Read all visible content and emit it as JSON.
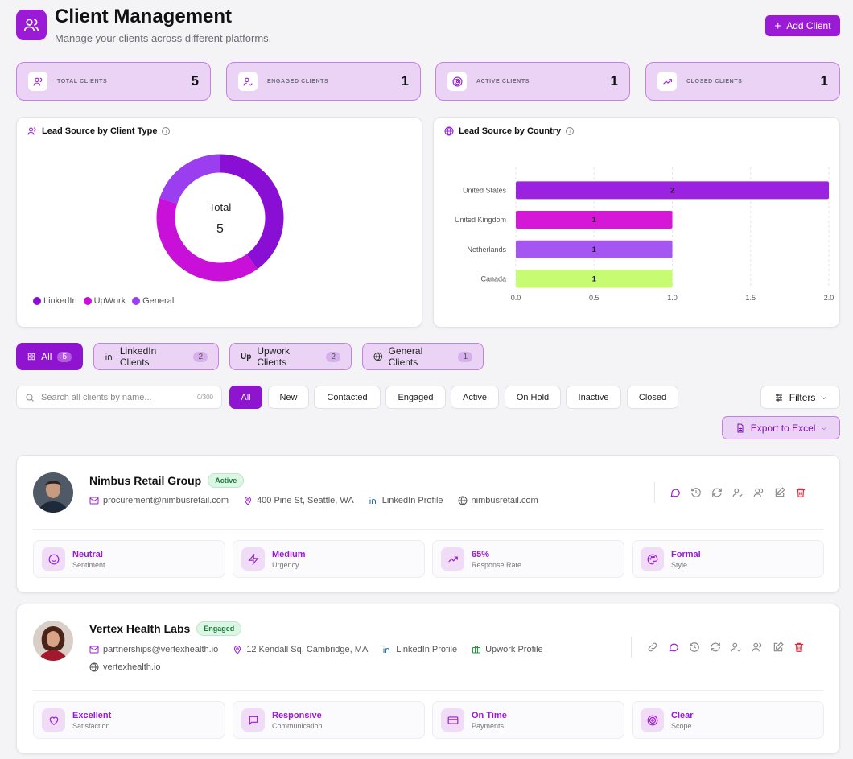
{
  "header": {
    "title": "Client Management",
    "subtitle": "Manage your clients across different platforms.",
    "add_button": "Add Client"
  },
  "stats": [
    {
      "label": "TOTAL CLIENTS",
      "value": "5",
      "icon": "users-icon"
    },
    {
      "label": "ENGAGED CLIENTS",
      "value": "1",
      "icon": "user-check-icon"
    },
    {
      "label": "ACTIVE CLIENTS",
      "value": "1",
      "icon": "target-icon"
    },
    {
      "label": "CLOSED CLIENTS",
      "value": "1",
      "icon": "trending-up-icon"
    }
  ],
  "donut": {
    "title": "Lead Source by Client Type",
    "center_label": "Total",
    "center_value": "5",
    "legend": [
      {
        "name": "LinkedIn",
        "color": "#8a0fd4"
      },
      {
        "name": "UpWork",
        "color": "#c810d8"
      },
      {
        "name": "General",
        "color": "#9a3ef0"
      }
    ]
  },
  "bar": {
    "title": "Lead Source by Country"
  },
  "chart_data": [
    {
      "type": "pie",
      "title": "Lead Source by Client Type",
      "categories": [
        "LinkedIn",
        "UpWork",
        "General"
      ],
      "values": [
        2,
        2,
        1
      ],
      "colors": [
        "#8a0fd4",
        "#c810d8",
        "#9a3ef0"
      ],
      "legend": "bottom-left"
    },
    {
      "type": "bar",
      "orientation": "horizontal",
      "title": "Lead Source by Country",
      "categories": [
        "United States",
        "United Kingdom",
        "Netherlands",
        "Canada"
      ],
      "values": [
        2,
        1,
        1,
        1
      ],
      "colors": [
        "#9a22e0",
        "#d418d6",
        "#a455f2",
        "#c6fb72"
      ],
      "xlim": [
        0,
        2
      ],
      "xticks": [
        "0.0",
        "0.5",
        "1.0",
        "1.5",
        "2.0"
      ]
    }
  ],
  "tabs": [
    {
      "label": "All",
      "count": "5",
      "icon": "grid-icon"
    },
    {
      "label": "LinkedIn Clients",
      "count": "2",
      "icon": "linkedin-icon"
    },
    {
      "label": "Upwork Clients",
      "count": "2",
      "icon": "upwork-icon"
    },
    {
      "label": "General Clients",
      "count": "1",
      "icon": "globe-icon"
    }
  ],
  "search": {
    "placeholder": "Search all clients by name...",
    "counter": "0/300"
  },
  "status_filters": [
    "All",
    "New",
    "Contacted",
    "Engaged",
    "Active",
    "On Hold",
    "Inactive",
    "Closed"
  ],
  "filters_label": "Filters",
  "export_label": "Export to Excel",
  "clients": [
    {
      "name": "Nimbus Retail Group",
      "status": "Active",
      "email": "procurement@nimbusretail.com",
      "address": "400 Pine St, Seattle, WA",
      "linkedin": "LinkedIn Profile",
      "website": "nimbusretail.com",
      "metrics": [
        {
          "value": "Neutral",
          "label": "Sentiment",
          "icon": "smile-icon"
        },
        {
          "value": "Medium",
          "label": "Urgency",
          "icon": "zap-icon"
        },
        {
          "value": "65%",
          "label": "Response Rate",
          "icon": "trending-up-icon"
        },
        {
          "value": "Formal",
          "label": "Style",
          "icon": "palette-icon"
        }
      ]
    },
    {
      "name": "Vertex Health Labs",
      "status": "Engaged",
      "email": "partnerships@vertexhealth.io",
      "address": "12 Kendall Sq, Cambridge, MA",
      "linkedin": "LinkedIn Profile",
      "upwork": "Upwork Profile",
      "website": "vertexhealth.io",
      "metrics": [
        {
          "value": "Excellent",
          "label": "Satisfaction",
          "icon": "heart-icon"
        },
        {
          "value": "Responsive",
          "label": "Communication",
          "icon": "message-icon"
        },
        {
          "value": "On Time",
          "label": "Payments",
          "icon": "credit-card-icon"
        },
        {
          "value": "Clear",
          "label": "Scope",
          "icon": "target-icon"
        }
      ]
    }
  ]
}
